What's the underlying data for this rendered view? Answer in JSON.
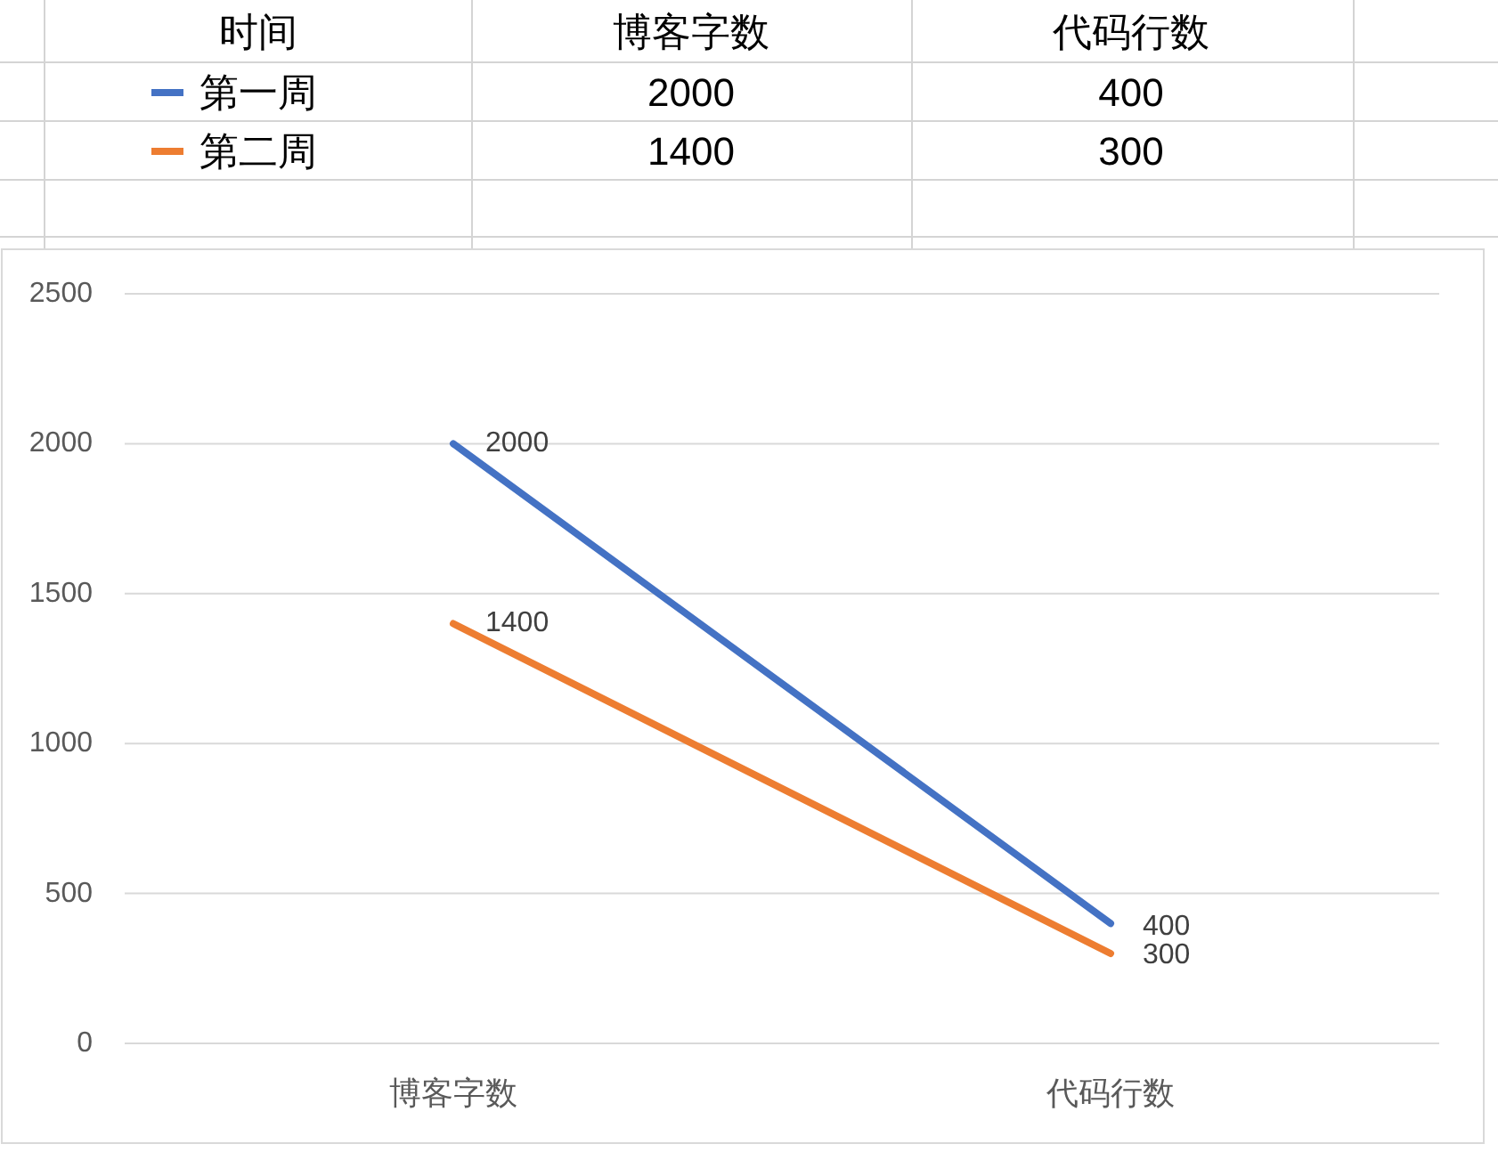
{
  "chart_data": {
    "type": "line",
    "legend_title": "时间",
    "categories": [
      "博客字数",
      "代码行数"
    ],
    "series": [
      {
        "name": "第一周",
        "color": "#4472c4",
        "values": [
          2000,
          400
        ],
        "value_labels": [
          "2000",
          "400"
        ]
      },
      {
        "name": "第二周",
        "color": "#ed7d31",
        "values": [
          1400,
          300
        ],
        "value_labels": [
          "1400",
          "300"
        ]
      }
    ],
    "ylim": [
      0,
      2500
    ],
    "yticks": [
      0,
      500,
      1000,
      1500,
      2000,
      2500
    ],
    "grid": "y",
    "legend": "top",
    "annotations": [
      "2000",
      "400",
      "1400",
      "300"
    ]
  }
}
